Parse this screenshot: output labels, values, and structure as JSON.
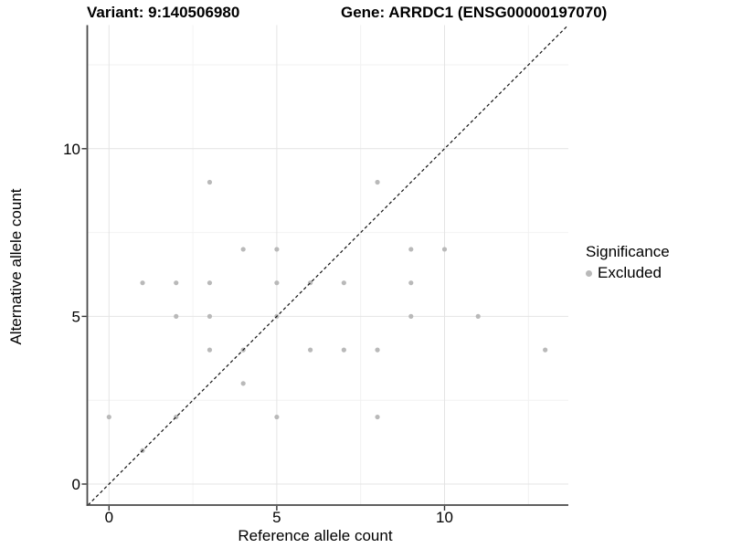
{
  "chart_data": {
    "type": "scatter",
    "titles": {
      "left": "Variant: 9:140506980",
      "right": "Gene: ARRDC1 (ENSG00000197070)"
    },
    "xlabel": "Reference allele count",
    "ylabel": "Alternative allele count",
    "xlim": [
      -0.65,
      13.7
    ],
    "ylim": [
      -0.65,
      13.7
    ],
    "x_ticks": [
      0,
      5,
      10
    ],
    "y_ticks": [
      0,
      5,
      10
    ],
    "x_minor_gridlines": [
      2.5,
      7.5,
      12.5
    ],
    "y_minor_gridlines": [
      2.5,
      7.5,
      12.5
    ],
    "grid": true,
    "identity_line": {
      "style": "dashed",
      "slope": 1,
      "intercept": 0
    },
    "series": [
      {
        "name": "Excluded",
        "points": [
          [
            0,
            2
          ],
          [
            1,
            1
          ],
          [
            1,
            6
          ],
          [
            2,
            2
          ],
          [
            2,
            5
          ],
          [
            2,
            6
          ],
          [
            3,
            4
          ],
          [
            3,
            5
          ],
          [
            3,
            6
          ],
          [
            3,
            9
          ],
          [
            4,
            3
          ],
          [
            4,
            4
          ],
          [
            4,
            7
          ],
          [
            5,
            2
          ],
          [
            5,
            5
          ],
          [
            5,
            6
          ],
          [
            5,
            7
          ],
          [
            6,
            4
          ],
          [
            6,
            6
          ],
          [
            7,
            4
          ],
          [
            7,
            6
          ],
          [
            8,
            2
          ],
          [
            8,
            4
          ],
          [
            8,
            9
          ],
          [
            9,
            5
          ],
          [
            9,
            6
          ],
          [
            9,
            7
          ],
          [
            10,
            7
          ],
          [
            11,
            5
          ],
          [
            13,
            4
          ]
        ]
      }
    ],
    "legend": {
      "title": "Significance",
      "position": "right",
      "items": [
        {
          "label": "Excluded",
          "color": "#b9b9b9"
        }
      ]
    },
    "colors": {
      "point": "#b9b9b9",
      "identity_line": "#1a1a1a",
      "grid_major": "#e4e4e4",
      "grid_minor": "#f2f2f2",
      "axis_line": "#4a4a4a",
      "tick": "#333333",
      "text": "#000000",
      "background": "#ffffff"
    }
  }
}
